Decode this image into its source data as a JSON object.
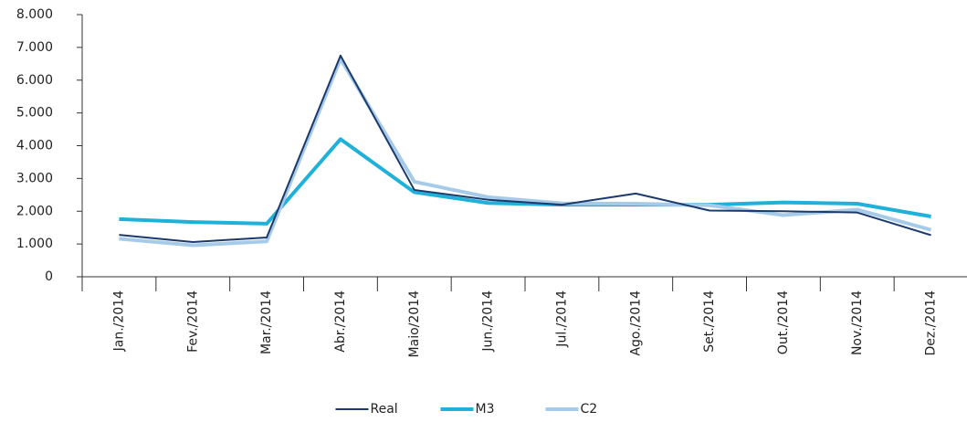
{
  "chart_data": {
    "type": "line",
    "categories": [
      "Jan./2014",
      "Fev./2014",
      "Mar./2014",
      "Abr./2014",
      "Maio/2014",
      "Jun./2014",
      "Jul./2014",
      "Ago./2014",
      "Set./2014",
      "Out./2014",
      "Nov./2014",
      "Dez./2014"
    ],
    "series": [
      {
        "name": "Real",
        "color": "#1b3a6b",
        "width": 2,
        "values": [
          1280,
          1060,
          1200,
          6750,
          2650,
          2350,
          2200,
          2540,
          2020,
          2000,
          1960,
          1270
        ]
      },
      {
        "name": "M3",
        "color": "#1fb1d9",
        "width": 4,
        "values": [
          1760,
          1670,
          1620,
          4200,
          2580,
          2250,
          2200,
          2200,
          2200,
          2270,
          2230,
          1840
        ]
      },
      {
        "name": "C2",
        "color": "#a6cbe8",
        "width": 4,
        "values": [
          1160,
          960,
          1080,
          6650,
          2900,
          2430,
          2240,
          2230,
          2180,
          1880,
          2050,
          1430
        ]
      }
    ],
    "ylim": [
      0,
      8000
    ],
    "yticks": [
      0,
      {
        "value": 1000,
        "label": "1.000"
      },
      {
        "value": 2000,
        "label": "2.000"
      },
      {
        "value": 3000,
        "label": "3.000"
      },
      {
        "value": 4000,
        "label": "4.000"
      },
      {
        "value": 5000,
        "label": "5.000"
      },
      {
        "value": 6000,
        "label": "6.000"
      },
      {
        "value": 7000,
        "label": "7.000"
      },
      {
        "value": 8000,
        "label": "8.000"
      }
    ],
    "grid": false,
    "legend": "bottom"
  }
}
